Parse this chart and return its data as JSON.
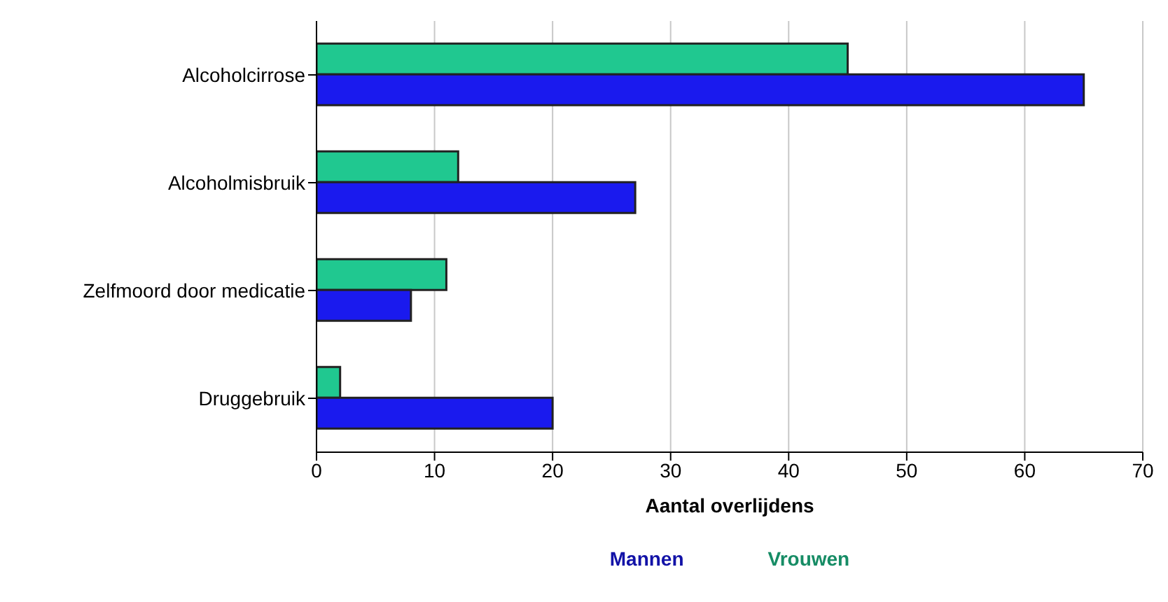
{
  "chart_data": {
    "type": "bar",
    "orientation": "horizontal",
    "xlabel": "Aantal overlijdens",
    "categories": [
      "Alcoholcirrose",
      "Alcoholmisbruik",
      "Zelfmoord door medicatie",
      "Druggebruik"
    ],
    "series": [
      {
        "name": "Mannen",
        "color": "#1a1aee",
        "values": [
          65,
          27,
          8,
          20
        ]
      },
      {
        "name": "Vrouwen",
        "color": "#20c890",
        "values": [
          45,
          12,
          11,
          2
        ]
      }
    ],
    "xlim": [
      0,
      70
    ],
    "xticks": [
      0,
      10,
      20,
      30,
      40,
      50,
      60,
      70
    ],
    "grid": "x",
    "legend": "bottom"
  }
}
